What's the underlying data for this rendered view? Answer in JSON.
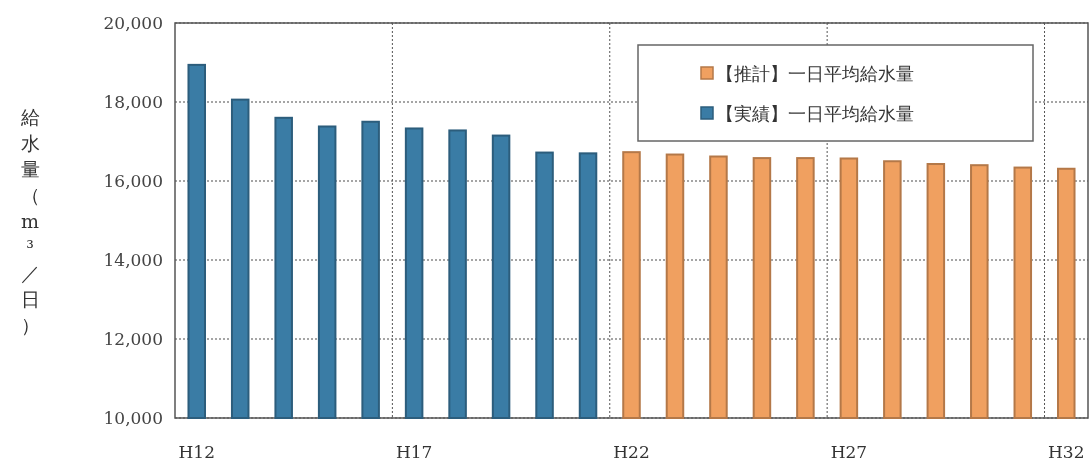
{
  "chart_data": {
    "type": "bar",
    "ylabel": "給水量（m³／日）",
    "categories": [
      "H12",
      null,
      null,
      null,
      null,
      "H17",
      null,
      null,
      null,
      null,
      "H22",
      null,
      null,
      null,
      null,
      "H27",
      null,
      null,
      null,
      null,
      "H32"
    ],
    "series": [
      {
        "name": "【推計】一日平均給水量",
        "color": "#f0a060",
        "values": [
          null,
          null,
          null,
          null,
          null,
          null,
          null,
          null,
          null,
          null,
          16730,
          16670,
          16620,
          16580,
          16580,
          16570,
          16500,
          16430,
          16400,
          16340,
          16310
        ]
      },
      {
        "name": "【実績】一日平均給水量",
        "color": "#3a7ca5",
        "values": [
          18940,
          18060,
          17600,
          17380,
          17500,
          17330,
          17280,
          17150,
          16720,
          16700,
          null,
          null,
          null,
          null,
          null,
          null,
          null,
          null,
          null,
          null,
          null
        ]
      }
    ],
    "ylim": [
      10000,
      20000
    ],
    "yticks": [
      {
        "value": 10000,
        "label": "10,000"
      },
      {
        "value": 12000,
        "label": "12,000"
      },
      {
        "value": 14000,
        "label": "14,000"
      },
      {
        "value": 16000,
        "label": "16,000"
      },
      {
        "value": 18000,
        "label": "18,000"
      },
      {
        "value": 20000,
        "label": "20,000"
      }
    ],
    "grid": true,
    "legend": "top right"
  }
}
